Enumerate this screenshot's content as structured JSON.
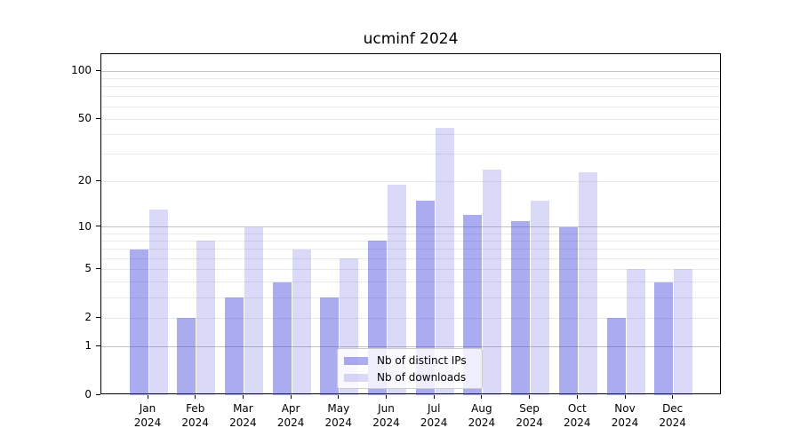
{
  "chart_data": {
    "type": "bar",
    "title": "ucminf 2024",
    "scale": "log1p",
    "categories": [
      "Jan 2024",
      "Feb 2024",
      "Mar 2024",
      "Apr 2024",
      "May 2024",
      "Jun 2024",
      "Jul 2024",
      "Aug 2024",
      "Sep 2024",
      "Oct 2024",
      "Nov 2024",
      "Dec 2024"
    ],
    "series": [
      {
        "name": "Nb of distinct IPs",
        "color": "rgba(68,68,221,0.45)",
        "values": [
          7,
          2,
          3,
          4,
          3,
          8,
          15,
          12,
          11,
          10,
          2,
          4
        ]
      },
      {
        "name": "Nb of downloads",
        "color": "rgba(68,68,221,0.20)",
        "values": [
          13,
          8,
          10,
          7,
          6,
          19,
          44,
          24,
          15,
          23,
          5,
          5
        ]
      }
    ],
    "y_ticks": [
      0,
      1,
      2,
      5,
      10,
      20,
      50,
      100
    ],
    "grid": {
      "major": [
        1,
        10,
        100
      ],
      "minor": [
        2,
        3,
        4,
        5,
        6,
        7,
        8,
        9,
        20,
        30,
        40,
        50,
        60,
        70,
        80,
        90
      ]
    },
    "ylim": [
      0,
      128
    ],
    "legend_position": "lower center",
    "colors": {
      "axis": "#000000",
      "major_grid": "#c3c3c3",
      "minor_grid": "#eaeaea"
    }
  }
}
